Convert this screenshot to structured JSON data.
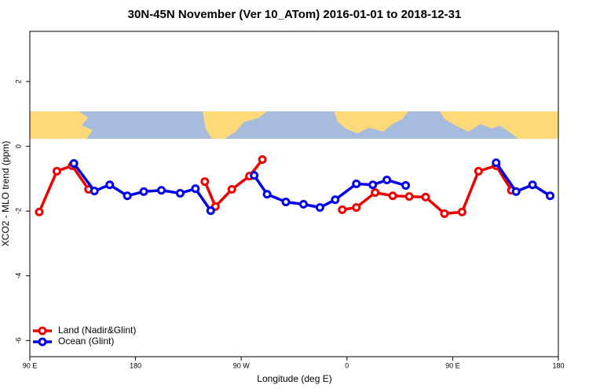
{
  "chart_data": {
    "type": "line",
    "title": "30N-45N November (Ver 10_ATom)   2016-01-01 to 2018-12-31",
    "x_label": "Longitude (deg E)",
    "y_label": "XCO2 - MLO trend (ppm)",
    "xlim": [
      90,
      540
    ],
    "ylim": [
      -6.5,
      3.55
    ],
    "xticks": [
      {
        "value": 90,
        "label": "90 E"
      },
      {
        "value": 180,
        "label": "180"
      },
      {
        "value": 270,
        "label": "90 W"
      },
      {
        "value": 360,
        "label": "0"
      },
      {
        "value": 450,
        "label": "90 E"
      },
      {
        "value": 540,
        "label": "180"
      }
    ],
    "yticks": [
      2,
      0,
      -2,
      -4,
      -6
    ],
    "legend": "bottom-left",
    "series": [
      {
        "name": "Land (Nadir&Glint)",
        "color": "#ee0000",
        "x": [
          98,
          113,
          126,
          140,
          null,
          239,
          248,
          262,
          277,
          288,
          null,
          356,
          368,
          384,
          399,
          413,
          427,
          443,
          458,
          472,
          487,
          500
        ],
        "values": [
          -2.03,
          -0.77,
          -0.6,
          -1.33,
          null,
          -1.09,
          -1.86,
          -1.33,
          -0.92,
          -0.41,
          null,
          -1.96,
          -1.89,
          -1.43,
          -1.53,
          -1.55,
          -1.57,
          -2.08,
          -2.03,
          -0.77,
          -0.6,
          -1.36
        ]
      },
      {
        "name": "Ocean (Glint)",
        "color": "#0000ee",
        "x": [
          127.5,
          145,
          158,
          173,
          187,
          202,
          218,
          231,
          244,
          null,
          281,
          292,
          308,
          323,
          337,
          350,
          368,
          382,
          394,
          410,
          null,
          487,
          504,
          518,
          533
        ],
        "values": [
          -0.53,
          -1.38,
          -1.19,
          -1.53,
          -1.4,
          -1.36,
          -1.45,
          -1.31,
          -1.99,
          null,
          -0.9,
          -1.48,
          -1.72,
          -1.79,
          -1.89,
          -1.65,
          -1.16,
          -1.19,
          -1.04,
          -1.21,
          null,
          -0.51,
          -1.4,
          -1.19,
          -1.53
        ]
      }
    ]
  }
}
